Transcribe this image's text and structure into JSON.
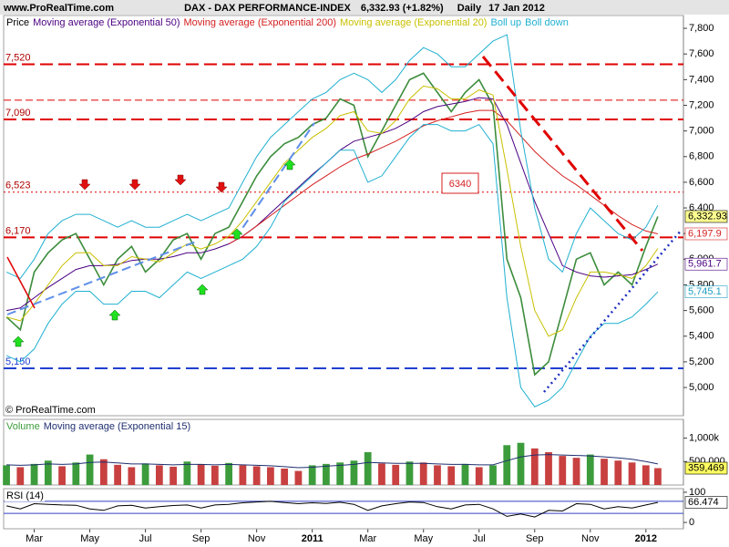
{
  "header": {
    "site": "www.ProRealTime.com",
    "copyright": "© ProRealTime.com"
  },
  "chart_data": [
    {
      "type": "line",
      "title": "DAX - DAX PERFORMANCE-INDEX",
      "quote": "6,332.93 (+1.82%)",
      "period": "Daily",
      "date": "17 Jan 2012",
      "legend_title": "Price",
      "x": [
        0,
        0.5,
        1,
        1.5,
        2,
        2.5,
        3,
        3.5,
        4,
        4.5,
        5,
        5.5,
        6,
        6.5,
        7,
        7.5,
        8,
        8.5,
        9,
        9.5,
        10,
        10.5,
        11,
        11.5,
        12,
        12.5,
        13,
        13.5,
        14,
        14.5,
        15,
        15.5,
        16,
        16.5,
        17,
        17.5,
        18,
        18.5,
        19,
        19.5,
        20,
        20.5,
        21,
        21.5,
        22,
        22.5,
        23,
        23.43
      ],
      "xlim": [
        -0.1,
        24.35
      ],
      "xticks": [
        {
          "value": 1,
          "label": "Mar"
        },
        {
          "value": 3,
          "label": "May"
        },
        {
          "value": 5,
          "label": "Jul"
        },
        {
          "value": 7,
          "label": "Sep"
        },
        {
          "value": 9,
          "label": "Nov"
        },
        {
          "value": 11,
          "label": "2011"
        },
        {
          "value": 13,
          "label": "Mar"
        },
        {
          "value": 15,
          "label": "May"
        },
        {
          "value": 17,
          "label": "Jul"
        },
        {
          "value": 19,
          "label": "Sep"
        },
        {
          "value": 21,
          "label": "Nov"
        },
        {
          "value": 23,
          "label": "2012"
        }
      ],
      "ylim": [
        4780,
        7900
      ],
      "yticks": [
        {
          "value": 5000,
          "label": "5,000"
        },
        {
          "value": 5200,
          "label": "5,200"
        },
        {
          "value": 5400,
          "label": "5,400"
        },
        {
          "value": 5600,
          "label": "5,600"
        },
        {
          "value": 5800,
          "label": "5,800"
        },
        {
          "value": 6000,
          "label": "6,000"
        },
        {
          "value": 6200,
          "label": "6,200"
        },
        {
          "value": 6400,
          "label": "6,400"
        },
        {
          "value": 6600,
          "label": "6,600"
        },
        {
          "value": 6800,
          "label": "6,800"
        },
        {
          "value": 7000,
          "label": "7,000"
        },
        {
          "value": 7200,
          "label": "7,200"
        },
        {
          "value": 7400,
          "label": "7,400"
        },
        {
          "value": 7600,
          "label": "7,600"
        },
        {
          "value": 7800,
          "label": "7,800"
        }
      ],
      "series": [
        {
          "name": "Price",
          "color": "#3c8c3c",
          "values": [
            5550,
            5450,
            5900,
            6050,
            6150,
            6200,
            6000,
            5800,
            6000,
            6100,
            5900,
            6000,
            6150,
            6200,
            6000,
            6200,
            6250,
            6450,
            6650,
            6800,
            6900,
            6950,
            7050,
            7100,
            7250,
            7200,
            6800,
            7000,
            7200,
            7400,
            7450,
            7300,
            7150,
            7300,
            7400,
            7200,
            6000,
            5700,
            5100,
            5200,
            5600,
            6000,
            6050,
            5800,
            5900,
            5800,
            6100,
            6332.93
          ]
        },
        {
          "name": "Moving average (Exponential 50)",
          "color": "#4b0082",
          "values": [
            5600,
            5620,
            5700,
            5780,
            5850,
            5920,
            5950,
            5950,
            5960,
            5990,
            6000,
            6000,
            6020,
            6050,
            6050,
            6080,
            6120,
            6180,
            6260,
            6360,
            6460,
            6560,
            6660,
            6750,
            6850,
            6920,
            6950,
            6980,
            7020,
            7080,
            7150,
            7190,
            7210,
            7230,
            7260,
            7250,
            7050,
            6750,
            6450,
            6200,
            5950,
            5900,
            5870,
            5860,
            5870,
            5880,
            5920,
            5961.7
          ]
        },
        {
          "name": "Moving average (Exponential 200)",
          "color": "#d42020",
          "values": [
            null,
            null,
            null,
            null,
            null,
            null,
            null,
            null,
            null,
            null,
            null,
            null,
            null,
            null,
            null,
            null,
            6120,
            6180,
            6260,
            6340,
            6420,
            6500,
            6580,
            6650,
            6720,
            6780,
            6820,
            6870,
            6920,
            6980,
            7040,
            7080,
            7110,
            7140,
            7160,
            7160,
            7080,
            6960,
            6840,
            6740,
            6650,
            6580,
            6500,
            6420,
            6340,
            6270,
            6220,
            6197.9
          ]
        },
        {
          "name": "Moving average (Exponential 20)",
          "color": "#c8c000",
          "values": [
            5550,
            5520,
            5650,
            5800,
            5950,
            6050,
            6050,
            5950,
            5950,
            6020,
            6000,
            5980,
            6050,
            6120,
            6080,
            6120,
            6180,
            6300,
            6450,
            6600,
            6750,
            6850,
            6950,
            7020,
            7120,
            7150,
            7000,
            6980,
            7080,
            7250,
            7350,
            7330,
            7250,
            7250,
            7320,
            7280,
            6700,
            6100,
            5600,
            5400,
            5450,
            5700,
            5900,
            5900,
            5880,
            5850,
            5950,
            6084
          ]
        },
        {
          "name": "Boll up",
          "color": "#20b0d0",
          "values": [
            5900,
            5850,
            6000,
            6200,
            6300,
            6350,
            6350,
            6300,
            6250,
            6300,
            6250,
            6250,
            6300,
            6350,
            6300,
            6350,
            6400,
            6600,
            6800,
            6950,
            7050,
            7150,
            7250,
            7300,
            7400,
            7450,
            7400,
            7300,
            7400,
            7550,
            7650,
            7600,
            7500,
            7500,
            7600,
            7700,
            7750,
            7000,
            6400,
            6000,
            5900,
            6200,
            6400,
            6300,
            6200,
            6150,
            6250,
            6420
          ]
        },
        {
          "name": "Boll down",
          "color": "#20b0d0",
          "values": [
            5250,
            5200,
            5300,
            5500,
            5650,
            5750,
            5750,
            5650,
            5650,
            5750,
            5750,
            5700,
            5800,
            5900,
            5850,
            5900,
            5950,
            6000,
            6100,
            6250,
            6450,
            6550,
            6650,
            6750,
            6850,
            6850,
            6600,
            6650,
            6800,
            6950,
            7050,
            7050,
            7000,
            7000,
            7050,
            6900,
            5700,
            5000,
            4850,
            4900,
            5000,
            5200,
            5400,
            5500,
            5500,
            5550,
            5650,
            5745.1
          ]
        }
      ],
      "levels": [
        {
          "value": 7520,
          "label": "7,520",
          "color": "#e00000",
          "dash": "long"
        },
        {
          "value": 7240,
          "color": "#e00000",
          "dash": "thin"
        },
        {
          "value": 7090,
          "label": "7,090",
          "color": "#e00000",
          "dash": "long"
        },
        {
          "value": 6523,
          "label": "6,523",
          "color": "#e00000",
          "dash": "dot"
        },
        {
          "value": 6170,
          "label": "6,170",
          "color": "#e00000",
          "dash": "long"
        },
        {
          "value": 5150,
          "label": "5,150",
          "color": "#2040d0",
          "dash": "long"
        }
      ],
      "tags": [
        {
          "value": 6332.93,
          "label": "6,332.93",
          "color": "#000000",
          "bg": "#ffff90"
        },
        {
          "value": 6197.9,
          "label": "6,197.9",
          "color": "#d42020",
          "bg": "#ffffff"
        },
        {
          "value": 5961.7,
          "label": "5,961.7",
          "color": "#4b0082",
          "bg": "#ffffff"
        },
        {
          "value": 5745.1,
          "label": "5,745.1",
          "color": "#20a0c0",
          "bg": "#ffffff"
        }
      ],
      "annotations": [
        {
          "text": "6340",
          "color": "#d42020"
        }
      ]
    },
    {
      "type": "bar",
      "title": "Volume",
      "x": [
        0,
        0.5,
        1,
        1.5,
        2,
        2.5,
        3,
        3.5,
        4,
        4.5,
        5,
        5.5,
        6,
        6.5,
        7,
        7.5,
        8,
        8.5,
        9,
        9.5,
        10,
        10.5,
        11,
        11.5,
        12,
        12.5,
        13,
        13.5,
        14,
        14.5,
        15,
        15.5,
        16,
        16.5,
        17,
        17.5,
        18,
        18.5,
        19,
        19.5,
        20,
        20.5,
        21,
        21.5,
        22,
        22.5,
        23,
        23.43
      ],
      "xlim": [
        -0.1,
        24.35
      ],
      "ylim": [
        0,
        1400000
      ],
      "yticks": [
        {
          "value": 500000,
          "label": "500,000"
        },
        {
          "value": 1000000,
          "label": "1,000k"
        }
      ],
      "series": [
        {
          "name": "Volume",
          "color": "#3c9c3c",
          "style": "bar",
          "values": [
            420000,
            380000,
            450000,
            520000,
            400000,
            480000,
            650000,
            550000,
            430000,
            380000,
            460000,
            420000,
            390000,
            500000,
            440000,
            410000,
            470000,
            420000,
            400000,
            380000,
            350000,
            300000,
            420000,
            450000,
            480000,
            520000,
            700000,
            460000,
            430000,
            500000,
            480000,
            420000,
            400000,
            450000,
            380000,
            420000,
            850000,
            900000,
            780000,
            700000,
            620000,
            580000,
            650000,
            560000,
            520000,
            480000,
            420000,
            359469
          ]
        },
        {
          "name": "Moving average (Exponential 15)",
          "color": "#203070",
          "style": "line",
          "values": [
            430000,
            420000,
            430000,
            450000,
            440000,
            450000,
            480000,
            490000,
            470000,
            450000,
            450000,
            440000,
            430000,
            440000,
            440000,
            430000,
            440000,
            430000,
            420000,
            410000,
            390000,
            370000,
            380000,
            400000,
            420000,
            440000,
            480000,
            470000,
            460000,
            460000,
            460000,
            450000,
            440000,
            440000,
            430000,
            430000,
            520000,
            600000,
            640000,
            650000,
            640000,
            630000,
            620000,
            600000,
            580000,
            550000,
            500000,
            450000
          ]
        }
      ],
      "tags": [
        {
          "value": 359469,
          "label": "359,469",
          "color": "#000000",
          "bg": "#ffff60"
        }
      ]
    },
    {
      "type": "line",
      "title": "RSI (14)",
      "x": [
        0,
        0.5,
        1,
        1.5,
        2,
        2.5,
        3,
        3.5,
        4,
        4.5,
        5,
        5.5,
        6,
        6.5,
        7,
        7.5,
        8,
        8.5,
        9,
        9.5,
        10,
        10.5,
        11,
        11.5,
        12,
        12.5,
        13,
        13.5,
        14,
        14.5,
        15,
        15.5,
        16,
        16.5,
        17,
        17.5,
        18,
        18.5,
        19,
        19.5,
        20,
        20.5,
        21,
        21.5,
        22,
        22.5,
        23,
        23.43
      ],
      "xlim": [
        -0.1,
        24.35
      ],
      "ylim": [
        -21,
        112
      ],
      "yticks": [
        0,
        100
      ],
      "bands": [
        30,
        70
      ],
      "series": [
        {
          "name": "RSI",
          "color": "#000000",
          "values": [
            55,
            45,
            62,
            60,
            58,
            57,
            45,
            40,
            55,
            57,
            48,
            52,
            56,
            58,
            48,
            58,
            60,
            65,
            68,
            70,
            66,
            62,
            65,
            63,
            67,
            60,
            40,
            55,
            62,
            68,
            66,
            52,
            45,
            58,
            60,
            45,
            20,
            28,
            18,
            40,
            38,
            62,
            60,
            45,
            52,
            48,
            58,
            66.474
          ]
        }
      ],
      "tags": [
        {
          "value": 66.474,
          "label": "66.474",
          "color": "#000000",
          "bg": "#ffffff"
        }
      ]
    }
  ]
}
